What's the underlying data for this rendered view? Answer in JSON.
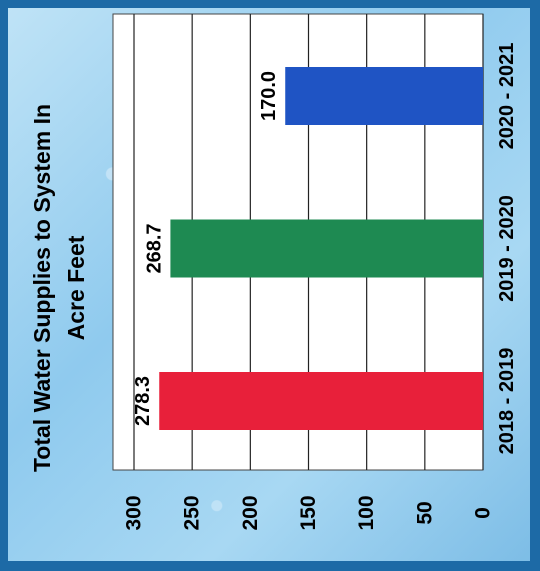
{
  "chart_data": {
    "type": "bar",
    "title": "Total Water Supplies to System In Acre Feet",
    "title_lines": [
      "Total Water Supplies to System In",
      "Acre Feet"
    ],
    "categories": [
      "2018 - 2019",
      "2019 - 2020",
      "2020 - 2021"
    ],
    "values": [
      278.3,
      268.7,
      170.0
    ],
    "value_labels": [
      "278.3",
      "268.7",
      "170.0"
    ],
    "tick_labels": [
      "0",
      "50",
      "100",
      "150",
      "200",
      "250",
      "300"
    ],
    "ylim": [
      0,
      300
    ],
    "grid": true,
    "orientation": "rotated-90-clockwise",
    "colors": [
      "#e8203a",
      "#1e8a52",
      "#1f54c4"
    ],
    "background_color": "#1d6aa6"
  }
}
